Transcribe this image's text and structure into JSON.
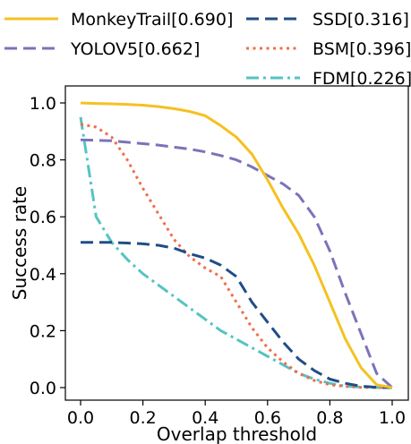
{
  "chart_data": {
    "type": "line",
    "xlabel": "Overlap threshold",
    "ylabel": "Success rate",
    "xlim": [
      0.0,
      1.0
    ],
    "ylim": [
      0.0,
      1.0
    ],
    "xticks": [
      "0.0",
      "0.2",
      "0.4",
      "0.6",
      "0.8",
      "1.0"
    ],
    "yticks": [
      "0.0",
      "0.2",
      "0.4",
      "0.6",
      "0.8",
      "1.0"
    ],
    "grid": false,
    "legend_position": "top",
    "x": [
      0.0,
      0.05,
      0.1,
      0.15,
      0.2,
      0.25,
      0.3,
      0.35,
      0.4,
      0.45,
      0.5,
      0.55,
      0.6,
      0.65,
      0.7,
      0.75,
      0.8,
      0.85,
      0.9,
      0.95,
      1.0
    ],
    "series": [
      {
        "name": "MonkeyTrail[0.690]",
        "color": "#f5c121",
        "dash": "solid",
        "values": [
          1.0,
          0.998,
          0.997,
          0.995,
          0.992,
          0.987,
          0.98,
          0.97,
          0.955,
          0.92,
          0.88,
          0.82,
          0.73,
          0.63,
          0.54,
          0.43,
          0.3,
          0.17,
          0.07,
          0.01,
          0.0
        ]
      },
      {
        "name": "YOLOV5[0.662]",
        "color": "#7b73b9",
        "dash": "dashed",
        "values": [
          0.87,
          0.869,
          0.867,
          0.862,
          0.857,
          0.852,
          0.845,
          0.838,
          0.828,
          0.815,
          0.8,
          0.775,
          0.745,
          0.715,
          0.675,
          0.6,
          0.48,
          0.33,
          0.19,
          0.05,
          0.0
        ]
      },
      {
        "name": "SSD[0.316]",
        "color": "#1f4e86",
        "dash": "dashed",
        "values": [
          0.51,
          0.51,
          0.51,
          0.508,
          0.505,
          0.5,
          0.49,
          0.47,
          0.455,
          0.43,
          0.39,
          0.3,
          0.23,
          0.16,
          0.1,
          0.06,
          0.03,
          0.015,
          0.005,
          0.001,
          0.0
        ]
      },
      {
        "name": "BSM[0.396]",
        "color": "#ef6f4a",
        "dash": "dotted",
        "values": [
          0.925,
          0.915,
          0.88,
          0.8,
          0.7,
          0.61,
          0.52,
          0.46,
          0.42,
          0.39,
          0.3,
          0.21,
          0.14,
          0.09,
          0.05,
          0.025,
          0.01,
          0.004,
          0.001,
          0.0,
          0.0
        ]
      },
      {
        "name": "FDM[0.226]",
        "color": "#56c3c3",
        "dash": "dashdot",
        "values": [
          0.95,
          0.6,
          0.51,
          0.45,
          0.4,
          0.36,
          0.32,
          0.28,
          0.24,
          0.2,
          0.17,
          0.14,
          0.11,
          0.08,
          0.05,
          0.03,
          0.015,
          0.005,
          0.002,
          0.0,
          0.0
        ]
      }
    ]
  }
}
